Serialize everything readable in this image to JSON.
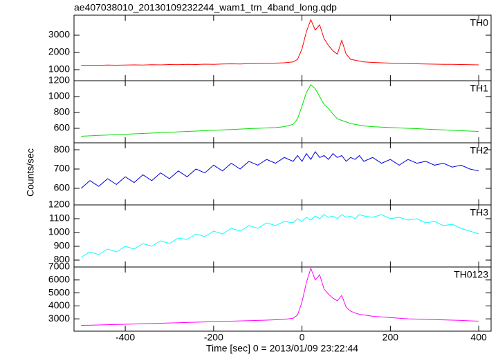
{
  "chart_data": {
    "type": "line",
    "title": "ae407038010_20130109232244_wam1_trn_4band_long.qdp",
    "xlabel": "Time [sec] 0 = 2013/01/09 23:22:44",
    "ylabel": "Counts/sec",
    "xlim": [
      -516,
      428
    ],
    "xticks": [
      -400,
      -200,
      0,
      200,
      400
    ],
    "x": [
      -500,
      -480,
      -460,
      -440,
      -420,
      -400,
      -380,
      -360,
      -340,
      -320,
      -300,
      -280,
      -260,
      -240,
      -220,
      -200,
      -180,
      -160,
      -140,
      -120,
      -100,
      -80,
      -60,
      -40,
      -20,
      -10,
      0,
      10,
      20,
      30,
      40,
      50,
      60,
      70,
      80,
      90,
      100,
      110,
      120,
      130,
      140,
      160,
      180,
      200,
      220,
      240,
      260,
      280,
      300,
      320,
      340,
      360,
      380,
      400
    ],
    "series": [
      {
        "name": "TH0",
        "color": "#ff0000",
        "ylim": [
          360,
          4160
        ],
        "yticks": [
          1000,
          2000,
          3000
        ],
        "values": [
          1250,
          1260,
          1250,
          1270,
          1260,
          1270,
          1280,
          1270,
          1290,
          1280,
          1300,
          1290,
          1310,
          1300,
          1320,
          1310,
          1330,
          1340,
          1330,
          1350,
          1360,
          1370,
          1380,
          1400,
          1450,
          1600,
          2200,
          3200,
          3900,
          3300,
          3600,
          2800,
          2400,
          2100,
          1900,
          2700,
          1900,
          1600,
          1550,
          1500,
          1450,
          1420,
          1400,
          1380,
          1370,
          1350,
          1340,
          1330,
          1320,
          1310,
          1310,
          1300,
          1290,
          1280
        ]
      },
      {
        "name": "TH1",
        "color": "#00e000",
        "ylim": [
          417,
          1200
        ],
        "yticks": [
          600,
          800,
          1000,
          1200
        ],
        "values": [
          500,
          505,
          510,
          515,
          520,
          525,
          530,
          535,
          540,
          545,
          550,
          555,
          560,
          565,
          570,
          575,
          580,
          585,
          590,
          595,
          600,
          605,
          610,
          620,
          650,
          720,
          880,
          1050,
          1150,
          1100,
          1000,
          900,
          850,
          780,
          720,
          700,
          680,
          660,
          650,
          640,
          630,
          620,
          615,
          610,
          605,
          600,
          595,
          590,
          585,
          580,
          575,
          570,
          565,
          560
        ]
      },
      {
        "name": "TH2",
        "color": "#0000e0",
        "ylim": [
          514,
          836
        ],
        "yticks": [
          600,
          700,
          800
        ],
        "values": [
          600,
          640,
          610,
          650,
          620,
          660,
          630,
          670,
          640,
          680,
          650,
          690,
          660,
          700,
          680,
          720,
          690,
          730,
          700,
          740,
          720,
          750,
          730,
          760,
          740,
          770,
          740,
          780,
          750,
          790,
          760,
          770,
          750,
          780,
          760,
          770,
          740,
          760,
          750,
          770,
          740,
          760,
          730,
          750,
          720,
          750,
          730,
          740,
          720,
          730,
          710,
          720,
          700,
          690
        ]
      },
      {
        "name": "TH3",
        "color": "#00ffff",
        "ylim": [
          750,
          1200
        ],
        "yticks": [
          800,
          900,
          1000,
          1100,
          1200
        ],
        "values": [
          820,
          860,
          840,
          880,
          860,
          900,
          880,
          920,
          900,
          940,
          920,
          960,
          950,
          990,
          970,
          1010,
          990,
          1030,
          1010,
          1050,
          1030,
          1070,
          1050,
          1080,
          1070,
          1100,
          1080,
          1110,
          1090,
          1120,
          1100,
          1130,
          1110,
          1120,
          1100,
          1130,
          1110,
          1120,
          1100,
          1130,
          1120,
          1110,
          1130,
          1100,
          1110,
          1090,
          1100,
          1070,
          1080,
          1050,
          1060,
          1030,
          1010,
          990
        ]
      },
      {
        "name": "TH0123",
        "color": "#ff00ff",
        "ylim": [
          2050,
          7000
        ],
        "yticks": [
          3000,
          4000,
          5000,
          6000,
          7000
        ],
        "values": [
          2500,
          2510,
          2530,
          2550,
          2560,
          2580,
          2600,
          2620,
          2640,
          2660,
          2680,
          2700,
          2720,
          2740,
          2760,
          2780,
          2800,
          2820,
          2840,
          2860,
          2880,
          2900,
          2930,
          2960,
          3050,
          3300,
          4300,
          5800,
          6900,
          6000,
          6400,
          5300,
          4900,
          4600,
          4400,
          4800,
          3900,
          3600,
          3450,
          3350,
          3300,
          3200,
          3150,
          3100,
          3050,
          3000,
          2980,
          2960,
          2940,
          2920,
          2900,
          2880,
          2850,
          2820
        ]
      }
    ]
  }
}
